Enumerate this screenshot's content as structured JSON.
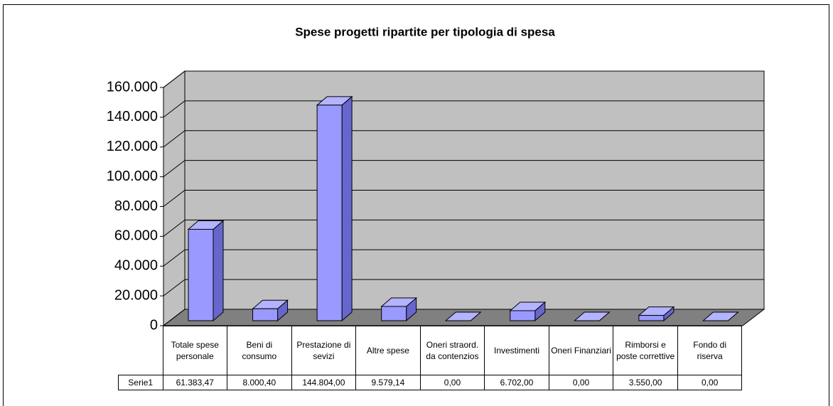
{
  "chart_data": {
    "type": "bar3d",
    "title": "Spese progetti ripartite per tipologia di spesa",
    "categories": [
      "Totale spese personale",
      "Beni di consumo",
      "Prestazione di sevizi",
      "Altre spese",
      "Oneri straord. da contenzios",
      "Investimenti",
      "Oneri Finanziari",
      "Rimborsi e poste correttive",
      "Fondo di riserva"
    ],
    "series": [
      {
        "name": "Serie1",
        "color": "#9999ff",
        "values": [
          61383.47,
          8000.4,
          144804.0,
          9579.14,
          0,
          6702.0,
          0,
          3550.0,
          0
        ],
        "value_labels": [
          "61.383,47",
          "8.000,40",
          "144.804,00",
          "9.579,14",
          "0,00",
          "6.702,00",
          "0,00",
          "3.550,00",
          "0,00"
        ]
      }
    ],
    "ylim": [
      0,
      160000
    ],
    "yticks": [
      0,
      {
        "value": 20000,
        "label": "20.000"
      },
      {
        "value": 40000,
        "label": "40.000"
      },
      {
        "value": 60000,
        "label": "60.000"
      },
      {
        "value": 80000,
        "label": "80.000"
      },
      {
        "value": 100000,
        "label": "100.000"
      },
      {
        "value": 120000,
        "label": "120.000"
      },
      {
        "value": 140000,
        "label": "140.000"
      },
      {
        "value": 160000,
        "label": "160.000"
      }
    ],
    "grid": true
  }
}
